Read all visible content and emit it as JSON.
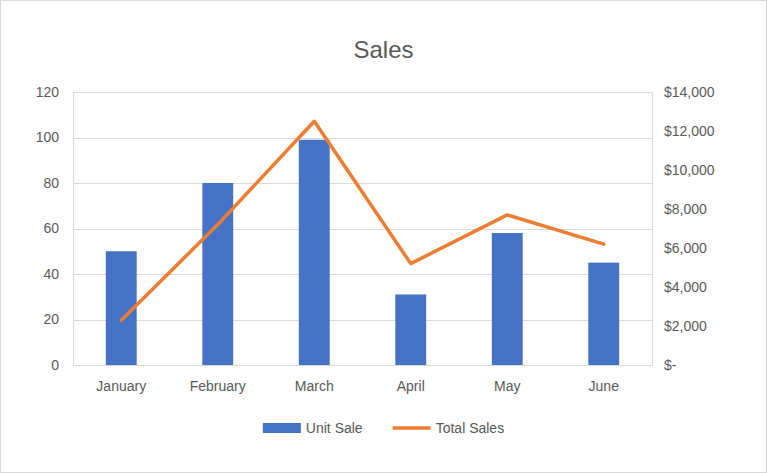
{
  "chart_data": {
    "type": "bar",
    "title": "Sales",
    "categories": [
      "January",
      "February",
      "March",
      "April",
      "May",
      "June"
    ],
    "series": [
      {
        "name": "Unit Sale",
        "type": "bar",
        "color": "#4472c4",
        "values": [
          50,
          80,
          99,
          31,
          58,
          45
        ]
      },
      {
        "name": "Total Sales",
        "type": "line",
        "color": "#ed7d31",
        "axis": "y2",
        "values": [
          2300,
          7200,
          12500,
          5200,
          7700,
          6200
        ]
      }
    ],
    "ylim": [
      0,
      120
    ],
    "yticks": [
      0,
      20,
      40,
      60,
      80,
      100,
      120
    ],
    "y2lim": [
      0,
      14000
    ],
    "y2ticks": [
      {
        "value": 0,
        "label": "$-"
      },
      {
        "value": 2000,
        "label": "$2,000"
      },
      {
        "value": 4000,
        "label": "$4,000"
      },
      {
        "value": 6000,
        "label": "$6,000"
      },
      {
        "value": 8000,
        "label": "$8,000"
      },
      {
        "value": 10000,
        "label": "$10,000"
      },
      {
        "value": 12000,
        "label": "$12,000"
      },
      {
        "value": 14000,
        "label": "$14,000"
      }
    ],
    "grid": true,
    "legend": "bottom"
  }
}
